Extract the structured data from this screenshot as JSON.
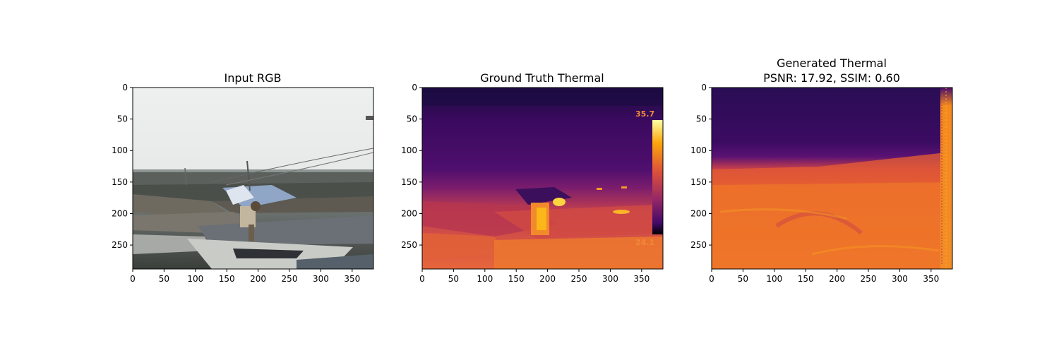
{
  "figure": {
    "panels": [
      {
        "id": "rgb",
        "title": "Input RGB",
        "subtitle": "",
        "image": "rgb-boats-photo",
        "xticks": [
          "0",
          "50",
          "100",
          "150",
          "200",
          "250",
          "300",
          "350"
        ],
        "yticks": [
          "0",
          "50",
          "100",
          "150",
          "200",
          "250"
        ]
      },
      {
        "id": "gt",
        "title": "Ground Truth Thermal",
        "subtitle": "",
        "image": "thermal-inferno-ground-truth",
        "scale_max_label": "35.7",
        "scale_min_label": "24.1",
        "xticks": [
          "0",
          "50",
          "100",
          "150",
          "200",
          "250",
          "300",
          "350"
        ],
        "yticks": [
          "0",
          "50",
          "100",
          "150",
          "200",
          "250"
        ]
      },
      {
        "id": "gen",
        "title": "Generated Thermal",
        "subtitle": "PSNR: 17.92, SSIM: 0.60",
        "image": "thermal-inferno-generated",
        "xticks": [
          "0",
          "50",
          "100",
          "150",
          "200",
          "250",
          "300",
          "350"
        ],
        "yticks": [
          "0",
          "50",
          "100",
          "150",
          "200",
          "250"
        ]
      }
    ]
  },
  "colors": {
    "inferno_dark": "#1b0c41",
    "inferno_purple": "#4a0c6b",
    "inferno_magenta": "#9f2a63",
    "inferno_orange": "#e65d2f",
    "inferno_yellow": "#fca50a",
    "inferno_light": "#fcffa4"
  }
}
